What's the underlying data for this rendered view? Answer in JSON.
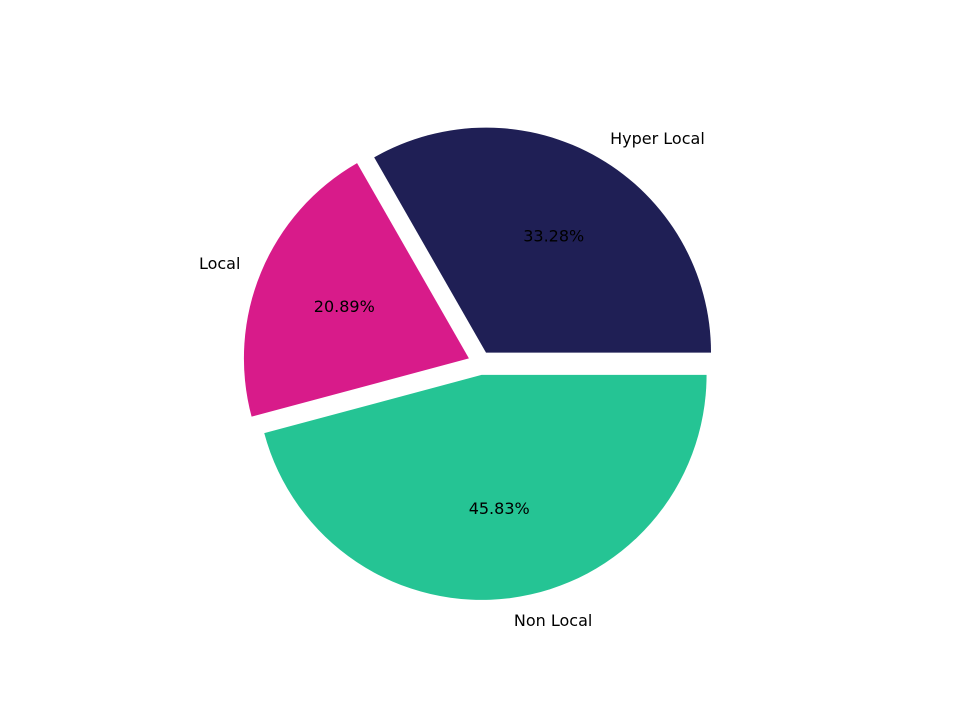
{
  "chart_data": {
    "type": "pie",
    "title": "",
    "slices": [
      {
        "label": "Hyper Local",
        "value": 33.28,
        "pct_label": "33.28%",
        "color": "#1f1f55",
        "exploded": true
      },
      {
        "label": "Local",
        "value": 20.89,
        "pct_label": "20.89%",
        "color": "#d81b8a",
        "exploded": true
      },
      {
        "label": "Non Local",
        "value": 45.83,
        "pct_label": "45.83%",
        "color": "#25c494",
        "exploded": true
      }
    ],
    "start_angle_deg": 0,
    "direction": "counterclockwise",
    "legend": "none"
  }
}
